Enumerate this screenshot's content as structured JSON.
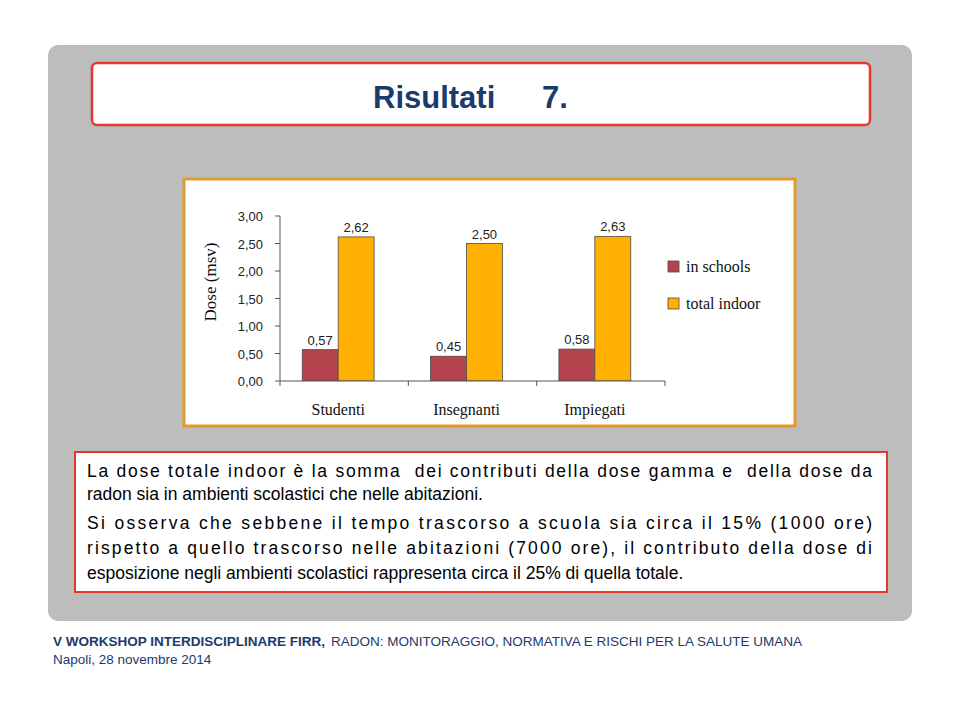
{
  "chart_data": {
    "type": "bar",
    "y_label": "Dose (msv)",
    "categories": [
      "Studenti",
      "Insegnanti",
      "Impiegati"
    ],
    "series": [
      {
        "name": "in schools",
        "color": "#b5434d",
        "values": [
          0.57,
          0.45,
          0.58
        ],
        "value_labels": [
          "0,57",
          "0,45",
          "0,58"
        ]
      },
      {
        "name": "total indoor",
        "color": "#ffb000",
        "values": [
          2.62,
          2.5,
          2.63
        ],
        "value_labels": [
          "2,62",
          "2,50",
          "2,63"
        ]
      }
    ],
    "ylim": [
      0,
      3
    ],
    "yticks": [
      {
        "value": 0,
        "label": "0,00"
      },
      {
        "value": 0.5,
        "label": "0,50"
      },
      {
        "value": 1,
        "label": "1,00"
      },
      {
        "value": 1.5,
        "label": "1,50"
      },
      {
        "value": 2,
        "label": "2,00"
      },
      {
        "value": 2.5,
        "label": "2,50"
      },
      {
        "value": 3,
        "label": "3,00"
      }
    ],
    "grid": false,
    "legend": "right",
    "data_labels": true
  },
  "slide": {
    "title": "Risultati 7.",
    "paragraphs": [
      [
        "La dose totale indoor è la somma  dei contributi della dose gamma e  della dose da",
        "radon sia in ambienti scolastici che nelle abitazioni."
      ],
      [
        "Si osserva che sebbene il tempo trascorso a scuola sia circa il 15% (1000 ore)",
        "rispetto a quello trascorso nelle abitazioni (7000 ore), il contributo della dose di",
        "esposizione negli ambienti scolastici rappresenta circa il 25% di quella totale."
      ]
    ],
    "footer": {
      "event": "V WORKSHOP INTERDISCIPLINARE FIRR,",
      "topic": "RADON: MONITORAGGIO, NORMATIVA E RISCHI PER LA SALUTE UMANA",
      "place_date": "Napoli, 28 novembre 2014"
    }
  }
}
